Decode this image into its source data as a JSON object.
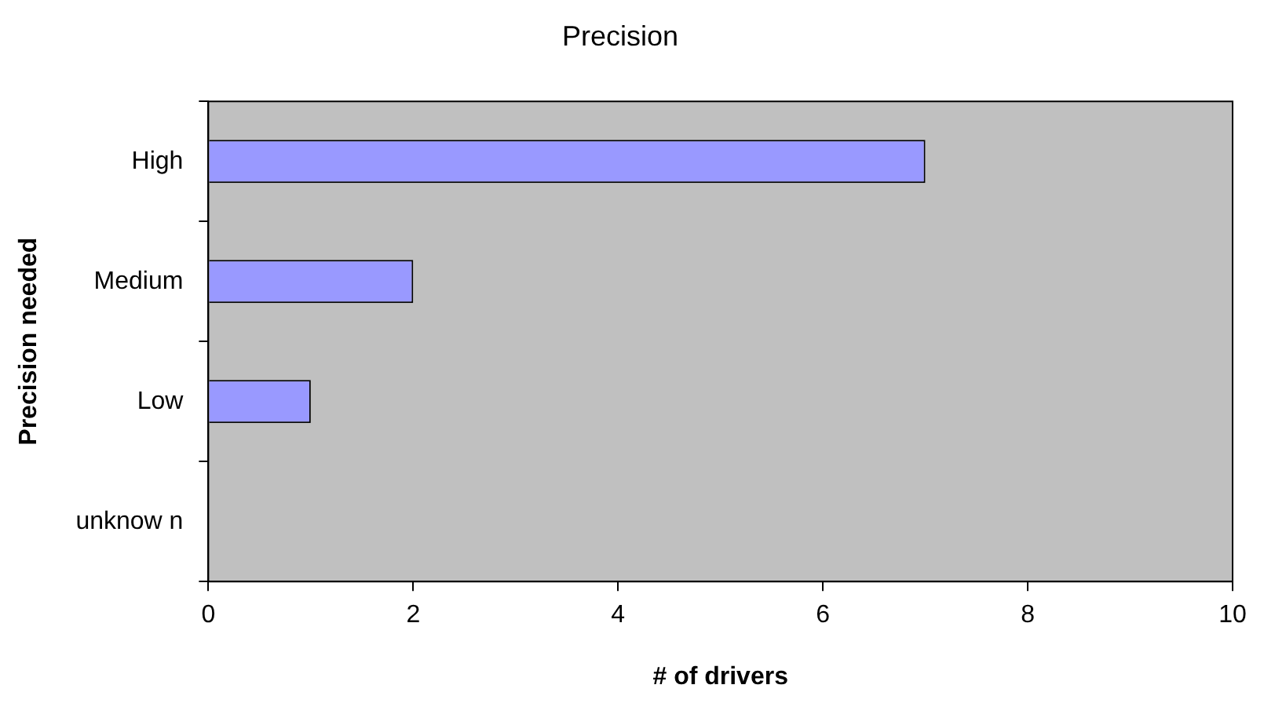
{
  "chart_data": {
    "type": "bar",
    "orientation": "horizontal",
    "title": "Precision",
    "xlabel": "# of drivers",
    "ylabel": "Precision needed",
    "categories": [
      "High",
      "Medium",
      "Low",
      "unknow n"
    ],
    "values": [
      7,
      2,
      1,
      0
    ],
    "color": "#9999ff",
    "xlim": [
      0,
      10
    ],
    "xticks": [
      0,
      2,
      4,
      6,
      8,
      10
    ],
    "grid": false,
    "legend": false
  }
}
